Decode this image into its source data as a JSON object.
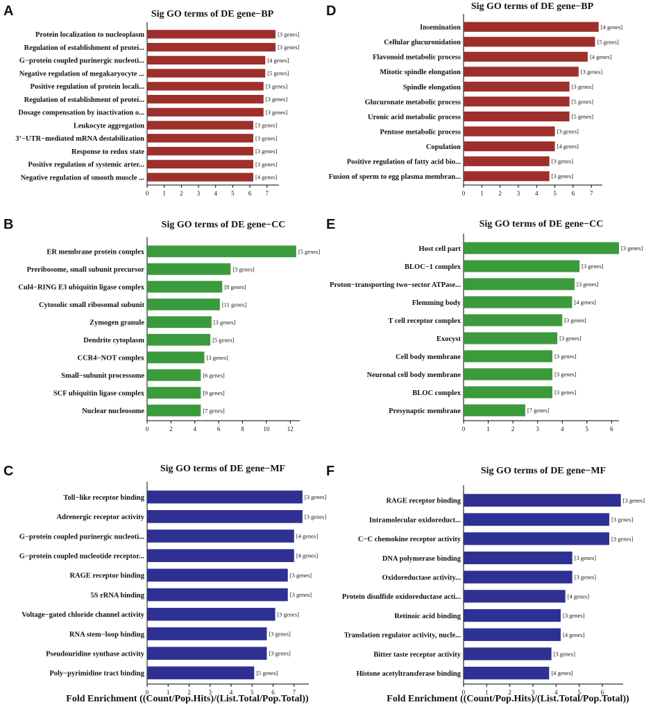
{
  "colors": {
    "BP": "#9e2f2c",
    "CC": "#3b9a3b",
    "MF": "#2e3192"
  },
  "xlabel": "Fold Enrichment ((Count/Pop.Hits)/(List.Total/Pop.Total))",
  "chart_data": [
    {
      "id": "A",
      "panel": "A",
      "type": "bar",
      "orientation": "horizontal",
      "title": "Sig GO terms of DE gene−BP",
      "color_key": "BP",
      "xlim": [
        0,
        7.7
      ],
      "xticks": [
        "0",
        "1",
        "2",
        "3",
        "4",
        "5",
        "6",
        "7"
      ],
      "xtick_values": [
        0,
        1,
        2,
        3,
        4,
        5,
        6,
        7
      ],
      "categories": [
        "Protein localization to nucleoplasm",
        "Regulation of establishment of protei...",
        "G−protein coupled purinergic nucleoti...",
        "Negative regulation of megakaryocyte ...",
        "Positive regulation of protein locali...",
        "Regulation of establishment of protei...",
        "Dosage compensation by inactivation o...",
        "Leukocyte aggregation",
        "3’−UTR−mediated mRNA destabilization",
        "Response to redox state",
        "Positive regulation of systemic arter...",
        "Negative regulation of smooth muscle ..."
      ],
      "values": [
        7.5,
        7.5,
        6.9,
        6.9,
        6.8,
        6.8,
        6.8,
        6.2,
        6.2,
        6.2,
        6.2,
        6.2
      ],
      "gene_labels": [
        "[3 genes]",
        "[3 genes]",
        "[4 genes]",
        "[5 genes]",
        "[3 genes]",
        "[3 genes]",
        "[3 genes]",
        "[3 genes]",
        "[3 genes]",
        "[3 genes]",
        "[3 genes]",
        "[4 genes]"
      ]
    },
    {
      "id": "B",
      "panel": "B",
      "type": "bar",
      "orientation": "horizontal",
      "title": "Sig GO terms of DE gene−CC",
      "color_key": "CC",
      "xlim": [
        0,
        12.8
      ],
      "xticks": [
        "0",
        "2",
        "4",
        "6",
        "8",
        "10",
        "12"
      ],
      "xtick_values": [
        0,
        2,
        4,
        6,
        8,
        10,
        12
      ],
      "categories": [
        "ER membrane protein complex",
        "Preribosome, small subunit precursor",
        "Cul4−RING E3 ubiquitin ligase complex",
        "Cytosolic small ribosomal subunit",
        "Zymogen granule",
        "Dendrite cytoplasm",
        "CCR4−NOT complex",
        "Small−subunit processome",
        "SCF ubiquitin ligase complex",
        "Nuclear nucleosome"
      ],
      "values": [
        12.5,
        7.0,
        6.3,
        6.1,
        5.4,
        5.3,
        4.8,
        4.5,
        4.5,
        4.5
      ],
      "gene_labels": [
        "[5 genes]",
        "[3 genes]",
        "[8 genes]",
        "[11 genes]",
        "[3 genes]",
        "[5 genes]",
        "[3 genes]",
        "[6 genes]",
        "[9 genes]",
        "[7 genes]"
      ]
    },
    {
      "id": "C",
      "panel": "C",
      "type": "bar",
      "orientation": "horizontal",
      "title": "Sig GO terms of DE gene−MF",
      "color_key": "MF",
      "xlim": [
        0,
        7.7
      ],
      "xticks": [
        "0",
        "1",
        "2",
        "3",
        "4",
        "5",
        "6",
        "7"
      ],
      "xtick_values": [
        0,
        1,
        2,
        3,
        4,
        5,
        6,
        7
      ],
      "categories": [
        "Toll−like receptor binding",
        "Adrenergic receptor activity",
        "G−protein coupled purinergic nucleoti...",
        "G−protein coupled nucleotide receptor...",
        "RAGE receptor binding",
        "5S rRNA binding",
        "Voltage−gated chloride channel activity",
        "RNA stem−loop binding",
        "Pseudouridine synthase activity",
        "Poly−pyrimidine tract binding"
      ],
      "values": [
        7.4,
        7.4,
        7.0,
        7.0,
        6.7,
        6.7,
        6.1,
        5.7,
        5.7,
        5.1
      ],
      "gene_labels": [
        "[3 genes]",
        "[3 genes]",
        "[4 genes]",
        "[4 genes]",
        "[3 genes]",
        "[3 genes]",
        "[3 genes]",
        "[3 genes]",
        "[3 genes]",
        "[5 genes]"
      ]
    },
    {
      "id": "D",
      "panel": "D",
      "type": "bar",
      "orientation": "horizontal",
      "title": "Sig GO terms of DE gene−BP",
      "color_key": "BP",
      "xlim": [
        0,
        7.6
      ],
      "xticks": [
        "0",
        "1",
        "2",
        "3",
        "4",
        "5",
        "6",
        "7"
      ],
      "xtick_values": [
        0,
        1,
        2,
        3,
        4,
        5,
        6,
        7
      ],
      "categories": [
        "Insemination",
        "Cellular glucuronidation",
        "Flavonoid metabolic process",
        "Mitotic spindle elongation",
        "Spindle elongation",
        "Glucuronate metabolic process",
        "Uronic acid metabolic process",
        "Pentose metabolic process",
        "Copulation",
        "Positive regulation of fatty acid bio...",
        "Fusion of sperm to egg plasma membran..."
      ],
      "values": [
        7.4,
        7.2,
        6.8,
        6.3,
        5.8,
        5.8,
        5.8,
        5.0,
        5.0,
        4.7,
        4.7
      ],
      "gene_labels": [
        "[4 genes]",
        "[5 genes]",
        "[4 genes]",
        "[3 genes]",
        "[3 genes]",
        "[5 genes]",
        "[5 genes]",
        "[3 genes]",
        "[4 genes]",
        "[3 genes]",
        "[3 genes]"
      ]
    },
    {
      "id": "E",
      "panel": "E",
      "type": "bar",
      "orientation": "horizontal",
      "title": "Sig GO terms of DE gene−CC",
      "color_key": "CC",
      "xlim": [
        0,
        6.3
      ],
      "xticks": [
        "0",
        "1",
        "2",
        "3",
        "4",
        "5",
        "6"
      ],
      "xtick_values": [
        0,
        1,
        2,
        3,
        4,
        5,
        6
      ],
      "categories": [
        "Host cell part",
        "BLOC−1 complex",
        "Proton−transporting two−sector ATPase...",
        "Flemming body",
        "T cell receptor complex",
        "Exocyst",
        "Cell body membrane",
        "Neuronal cell body membrane",
        "BLOC complex",
        "Presynaptic membrane"
      ],
      "values": [
        6.3,
        4.7,
        4.5,
        4.4,
        4.0,
        3.8,
        3.6,
        3.6,
        3.6,
        2.5
      ],
      "gene_labels": [
        "[3 genes]",
        "[3 genes]",
        "[3 genes]",
        "[4 genes]",
        "[3 genes]",
        "[3 genes]",
        "[3 genes]",
        "[3 genes]",
        "[3 genes]",
        "[7 genes]"
      ]
    },
    {
      "id": "F",
      "panel": "F",
      "type": "bar",
      "orientation": "horizontal",
      "title": "Sig GO terms of DE gene−MF",
      "color_key": "MF",
      "xlim": [
        0,
        6.9
      ],
      "xticks": [
        "0",
        "1",
        "2",
        "3",
        "4",
        "5",
        "6"
      ],
      "xtick_values": [
        0,
        1,
        2,
        3,
        4,
        5,
        6
      ],
      "categories": [
        "RAGE receptor binding",
        "Intramolecular oxidoreduct...",
        "C−C chemokine receptor activity",
        "DNA polymerase binding",
        "Oxidoreductase activity...",
        "Protein disulfide oxidoreductase acti...",
        "Retinoic acid binding",
        "Translation regulator activity, nucle...",
        "Bitter taste receptor activity",
        "Histone acetyltransferase binding"
      ],
      "values": [
        6.8,
        6.3,
        6.3,
        4.7,
        4.7,
        4.4,
        4.2,
        4.2,
        3.8,
        3.7
      ],
      "gene_labels": [
        "[3 genes]",
        "[3 genes]",
        "[3 genes]",
        "[3 genes]",
        "[3 genes]",
        "[4 genes]",
        "[3 genes]",
        "[4 genes]",
        "[3 genes]",
        "[4 genes]"
      ]
    }
  ]
}
